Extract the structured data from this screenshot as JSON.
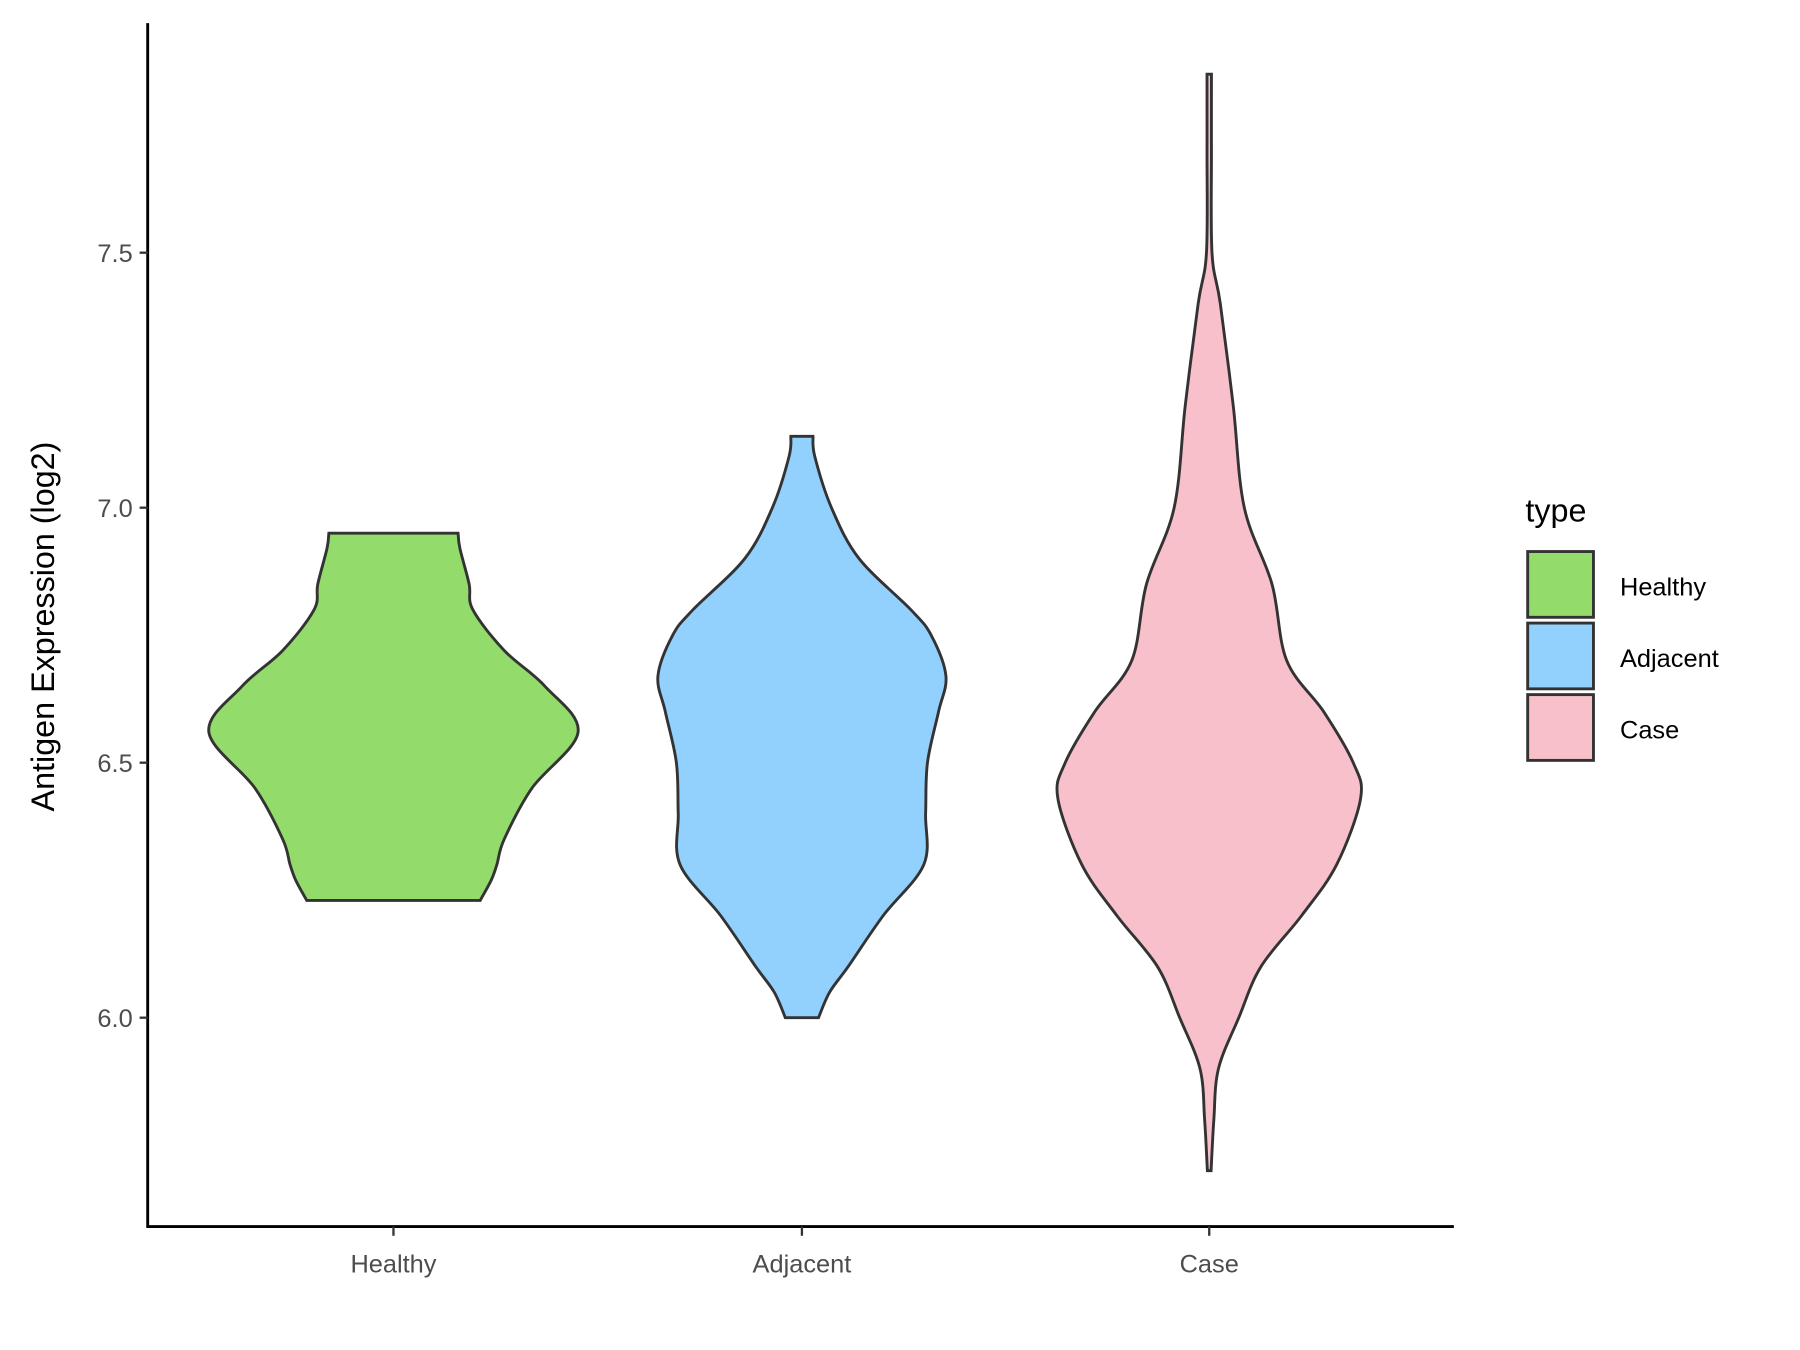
{
  "chart_data": {
    "type": "violin",
    "title": "",
    "xlabel": "",
    "ylabel": "Antigen Expression (log2)",
    "categories": [
      "Healthy",
      "Adjacent",
      "Case"
    ],
    "yticks": [
      "6.0",
      "6.5",
      "7.0",
      "7.5"
    ],
    "ytick_values": [
      6.0,
      6.5,
      7.0,
      7.5
    ],
    "ylim": [
      5.6,
      7.95
    ],
    "grid": false,
    "legend": {
      "title": "type",
      "position": "right",
      "entries": [
        "Healthy",
        "Adjacent",
        "Case"
      ]
    },
    "colors": [
      "#93DB6A",
      "#92D1FD",
      "#F7C0CB"
    ],
    "series": [
      {
        "name": "Healthy",
        "min": 6.23,
        "max": 6.95,
        "density": [
          [
            6.23,
            0.47
          ],
          [
            6.27,
            0.53
          ],
          [
            6.3,
            0.56
          ],
          [
            6.35,
            0.6
          ],
          [
            6.45,
            0.75
          ],
          [
            6.56,
            1.0
          ],
          [
            6.65,
            0.82
          ],
          [
            6.72,
            0.6
          ],
          [
            6.8,
            0.43
          ],
          [
            6.85,
            0.41
          ],
          [
            6.92,
            0.36
          ],
          [
            6.95,
            0.35
          ]
        ]
      },
      {
        "name": "Adjacent",
        "min": 6.0,
        "max": 7.14,
        "density": [
          [
            6.0,
            0.09
          ],
          [
            6.05,
            0.15
          ],
          [
            6.1,
            0.25
          ],
          [
            6.2,
            0.44
          ],
          [
            6.3,
            0.66
          ],
          [
            6.4,
            0.67
          ],
          [
            6.5,
            0.68
          ],
          [
            6.6,
            0.74
          ],
          [
            6.67,
            0.78
          ],
          [
            6.75,
            0.7
          ],
          [
            6.8,
            0.59
          ],
          [
            6.9,
            0.31
          ],
          [
            7.0,
            0.16
          ],
          [
            7.1,
            0.07
          ],
          [
            7.14,
            0.06
          ]
        ]
      },
      {
        "name": "Case",
        "min": 5.7,
        "max": 7.85,
        "density": [
          [
            5.7,
            0.01
          ],
          [
            5.8,
            0.025
          ],
          [
            5.9,
            0.05
          ],
          [
            6.0,
            0.16
          ],
          [
            6.1,
            0.28
          ],
          [
            6.2,
            0.5
          ],
          [
            6.3,
            0.69
          ],
          [
            6.43,
            0.82
          ],
          [
            6.5,
            0.78
          ],
          [
            6.6,
            0.62
          ],
          [
            6.7,
            0.42
          ],
          [
            6.85,
            0.34
          ],
          [
            7.0,
            0.19
          ],
          [
            7.2,
            0.13
          ],
          [
            7.4,
            0.06
          ],
          [
            7.5,
            0.015
          ],
          [
            7.7,
            0.012
          ],
          [
            7.85,
            0.012
          ]
        ]
      }
    ]
  }
}
